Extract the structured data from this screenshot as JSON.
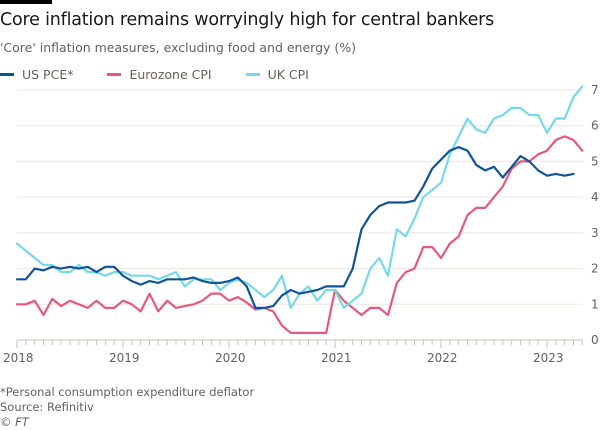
{
  "header": {
    "title": "Core inflation remains worryingly high for central bankers",
    "subtitle": "'Core' inflation measures, excluding food and energy (%)"
  },
  "footer": {
    "note": "*Personal consumption expenditure deflator",
    "source": "Source: Refinitiv",
    "copyright": "© FT"
  },
  "chart_data": {
    "type": "line",
    "title": "Core inflation remains worryingly high for central bankers",
    "subtitle": "'Core' inflation measures, excluding food and energy (%)",
    "xlabel": "",
    "ylabel": "%",
    "x_start": "2018-01",
    "x_frequency": "monthly",
    "x_ticks": [
      "2018",
      "2019",
      "2020",
      "2021",
      "2022",
      "2023"
    ],
    "y_ticks": [
      0,
      1,
      2,
      3,
      4,
      5,
      6,
      7
    ],
    "ylim": [
      0,
      7
    ],
    "y_axis_side": "right",
    "grid": true,
    "legend": "top-left",
    "series": [
      {
        "name": "US PCE*",
        "color": "#0f5499",
        "values": [
          1.7,
          1.7,
          2.0,
          1.95,
          2.05,
          2.0,
          2.05,
          2.0,
          2.05,
          1.9,
          2.05,
          2.05,
          1.8,
          1.65,
          1.55,
          1.65,
          1.6,
          1.7,
          1.7,
          1.7,
          1.75,
          1.65,
          1.6,
          1.6,
          1.65,
          1.75,
          1.5,
          0.9,
          0.9,
          0.95,
          1.25,
          1.4,
          1.3,
          1.35,
          1.4,
          1.5,
          1.5,
          1.5,
          2.0,
          3.1,
          3.5,
          3.75,
          3.85,
          3.85,
          3.85,
          3.9,
          4.3,
          4.8,
          5.05,
          5.3,
          5.4,
          5.3,
          4.9,
          4.75,
          4.85,
          4.55,
          4.85,
          5.15,
          5.0,
          4.75,
          4.6,
          4.65,
          4.6,
          4.65
        ]
      },
      {
        "name": "Eurozone CPI",
        "color": "#e5587f",
        "values": [
          1.0,
          1.0,
          1.1,
          0.7,
          1.15,
          0.95,
          1.1,
          1.0,
          0.9,
          1.1,
          0.9,
          0.9,
          1.1,
          1.0,
          0.8,
          1.3,
          0.8,
          1.1,
          0.9,
          0.95,
          1.0,
          1.1,
          1.3,
          1.3,
          1.1,
          1.2,
          1.05,
          0.85,
          0.9,
          0.8,
          0.4,
          0.2,
          0.2,
          0.2,
          0.2,
          0.2,
          1.4,
          1.1,
          0.9,
          0.7,
          0.9,
          0.9,
          0.7,
          1.6,
          1.9,
          2.0,
          2.6,
          2.6,
          2.3,
          2.7,
          2.9,
          3.5,
          3.7,
          3.7,
          4.0,
          4.3,
          4.8,
          5.0,
          5.0,
          5.2,
          5.3,
          5.6,
          5.7,
          5.6,
          5.3
        ]
      },
      {
        "name": "UK CPI",
        "color": "#75d9ea",
        "values": [
          2.7,
          2.5,
          2.3,
          2.1,
          2.1,
          1.9,
          1.9,
          2.1,
          1.9,
          1.9,
          1.8,
          1.9,
          1.9,
          1.8,
          1.8,
          1.8,
          1.7,
          1.8,
          1.9,
          1.5,
          1.7,
          1.7,
          1.7,
          1.4,
          1.6,
          1.7,
          1.6,
          1.4,
          1.2,
          1.4,
          1.8,
          0.9,
          1.3,
          1.5,
          1.1,
          1.4,
          1.4,
          0.9,
          1.1,
          1.3,
          2.0,
          2.3,
          1.8,
          3.1,
          2.9,
          3.4,
          4.0,
          4.2,
          4.4,
          5.2,
          5.7,
          6.2,
          5.9,
          5.8,
          6.2,
          6.3,
          6.5,
          6.5,
          6.3,
          6.3,
          5.8,
          6.2,
          6.2,
          6.8,
          7.1
        ]
      }
    ]
  }
}
